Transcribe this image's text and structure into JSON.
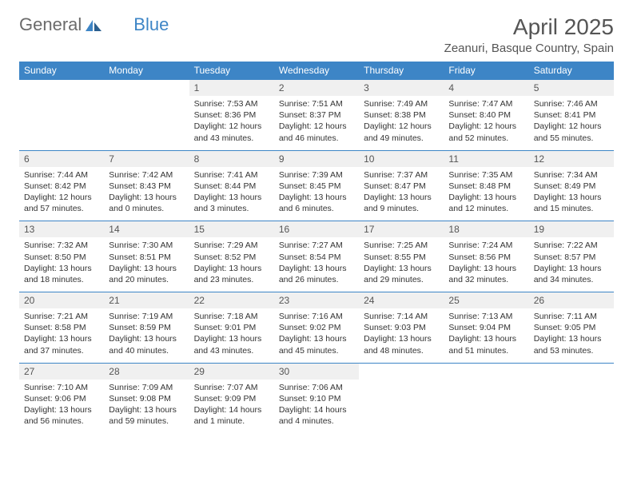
{
  "logo": {
    "text_gray": "General",
    "text_blue": "Blue"
  },
  "title": "April 2025",
  "location": "Zeanuri, Basque Country, Spain",
  "colors": {
    "header_bg": "#3d85c6",
    "header_text": "#ffffff",
    "daynum_bg": "#f0f0f0",
    "border": "#3d85c6",
    "body_text": "#333333",
    "title_text": "#555555"
  },
  "weekdays": [
    "Sunday",
    "Monday",
    "Tuesday",
    "Wednesday",
    "Thursday",
    "Friday",
    "Saturday"
  ],
  "weeks": [
    [
      null,
      null,
      {
        "n": "1",
        "sunrise": "7:53 AM",
        "sunset": "8:36 PM",
        "daylight": "12 hours and 43 minutes."
      },
      {
        "n": "2",
        "sunrise": "7:51 AM",
        "sunset": "8:37 PM",
        "daylight": "12 hours and 46 minutes."
      },
      {
        "n": "3",
        "sunrise": "7:49 AM",
        "sunset": "8:38 PM",
        "daylight": "12 hours and 49 minutes."
      },
      {
        "n": "4",
        "sunrise": "7:47 AM",
        "sunset": "8:40 PM",
        "daylight": "12 hours and 52 minutes."
      },
      {
        "n": "5",
        "sunrise": "7:46 AM",
        "sunset": "8:41 PM",
        "daylight": "12 hours and 55 minutes."
      }
    ],
    [
      {
        "n": "6",
        "sunrise": "7:44 AM",
        "sunset": "8:42 PM",
        "daylight": "12 hours and 57 minutes."
      },
      {
        "n": "7",
        "sunrise": "7:42 AM",
        "sunset": "8:43 PM",
        "daylight": "13 hours and 0 minutes."
      },
      {
        "n": "8",
        "sunrise": "7:41 AM",
        "sunset": "8:44 PM",
        "daylight": "13 hours and 3 minutes."
      },
      {
        "n": "9",
        "sunrise": "7:39 AM",
        "sunset": "8:45 PM",
        "daylight": "13 hours and 6 minutes."
      },
      {
        "n": "10",
        "sunrise": "7:37 AM",
        "sunset": "8:47 PM",
        "daylight": "13 hours and 9 minutes."
      },
      {
        "n": "11",
        "sunrise": "7:35 AM",
        "sunset": "8:48 PM",
        "daylight": "13 hours and 12 minutes."
      },
      {
        "n": "12",
        "sunrise": "7:34 AM",
        "sunset": "8:49 PM",
        "daylight": "13 hours and 15 minutes."
      }
    ],
    [
      {
        "n": "13",
        "sunrise": "7:32 AM",
        "sunset": "8:50 PM",
        "daylight": "13 hours and 18 minutes."
      },
      {
        "n": "14",
        "sunrise": "7:30 AM",
        "sunset": "8:51 PM",
        "daylight": "13 hours and 20 minutes."
      },
      {
        "n": "15",
        "sunrise": "7:29 AM",
        "sunset": "8:52 PM",
        "daylight": "13 hours and 23 minutes."
      },
      {
        "n": "16",
        "sunrise": "7:27 AM",
        "sunset": "8:54 PM",
        "daylight": "13 hours and 26 minutes."
      },
      {
        "n": "17",
        "sunrise": "7:25 AM",
        "sunset": "8:55 PM",
        "daylight": "13 hours and 29 minutes."
      },
      {
        "n": "18",
        "sunrise": "7:24 AM",
        "sunset": "8:56 PM",
        "daylight": "13 hours and 32 minutes."
      },
      {
        "n": "19",
        "sunrise": "7:22 AM",
        "sunset": "8:57 PM",
        "daylight": "13 hours and 34 minutes."
      }
    ],
    [
      {
        "n": "20",
        "sunrise": "7:21 AM",
        "sunset": "8:58 PM",
        "daylight": "13 hours and 37 minutes."
      },
      {
        "n": "21",
        "sunrise": "7:19 AM",
        "sunset": "8:59 PM",
        "daylight": "13 hours and 40 minutes."
      },
      {
        "n": "22",
        "sunrise": "7:18 AM",
        "sunset": "9:01 PM",
        "daylight": "13 hours and 43 minutes."
      },
      {
        "n": "23",
        "sunrise": "7:16 AM",
        "sunset": "9:02 PM",
        "daylight": "13 hours and 45 minutes."
      },
      {
        "n": "24",
        "sunrise": "7:14 AM",
        "sunset": "9:03 PM",
        "daylight": "13 hours and 48 minutes."
      },
      {
        "n": "25",
        "sunrise": "7:13 AM",
        "sunset": "9:04 PM",
        "daylight": "13 hours and 51 minutes."
      },
      {
        "n": "26",
        "sunrise": "7:11 AM",
        "sunset": "9:05 PM",
        "daylight": "13 hours and 53 minutes."
      }
    ],
    [
      {
        "n": "27",
        "sunrise": "7:10 AM",
        "sunset": "9:06 PM",
        "daylight": "13 hours and 56 minutes."
      },
      {
        "n": "28",
        "sunrise": "7:09 AM",
        "sunset": "9:08 PM",
        "daylight": "13 hours and 59 minutes."
      },
      {
        "n": "29",
        "sunrise": "7:07 AM",
        "sunset": "9:09 PM",
        "daylight": "14 hours and 1 minute."
      },
      {
        "n": "30",
        "sunrise": "7:06 AM",
        "sunset": "9:10 PM",
        "daylight": "14 hours and 4 minutes."
      },
      null,
      null,
      null
    ]
  ],
  "labels": {
    "sunrise": "Sunrise:",
    "sunset": "Sunset:",
    "daylight": "Daylight:"
  }
}
